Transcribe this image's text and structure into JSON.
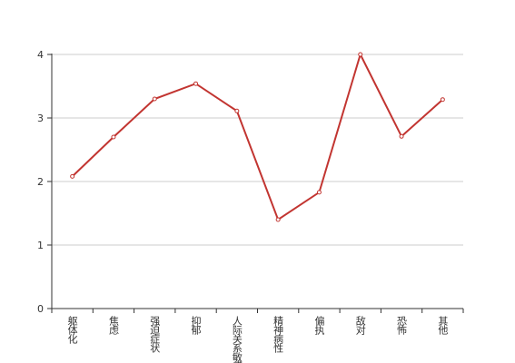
{
  "chart_data": {
    "type": "line",
    "categories": [
      "躯体化",
      "焦虑",
      "强迫症状",
      "抑郁",
      "人际关系敏感",
      "精神病性",
      "偏执",
      "敌对",
      "恐怖",
      "其他"
    ],
    "series": [
      {
        "color": "#c23531",
        "values": [
          2.08,
          2.7,
          3.3,
          3.54,
          3.11,
          1.4,
          1.83,
          4.0,
          2.71,
          3.29
        ]
      }
    ],
    "ylim": [
      0,
      4
    ],
    "yticks": [
      0,
      1,
      2,
      3,
      4
    ],
    "grid": true
  }
}
